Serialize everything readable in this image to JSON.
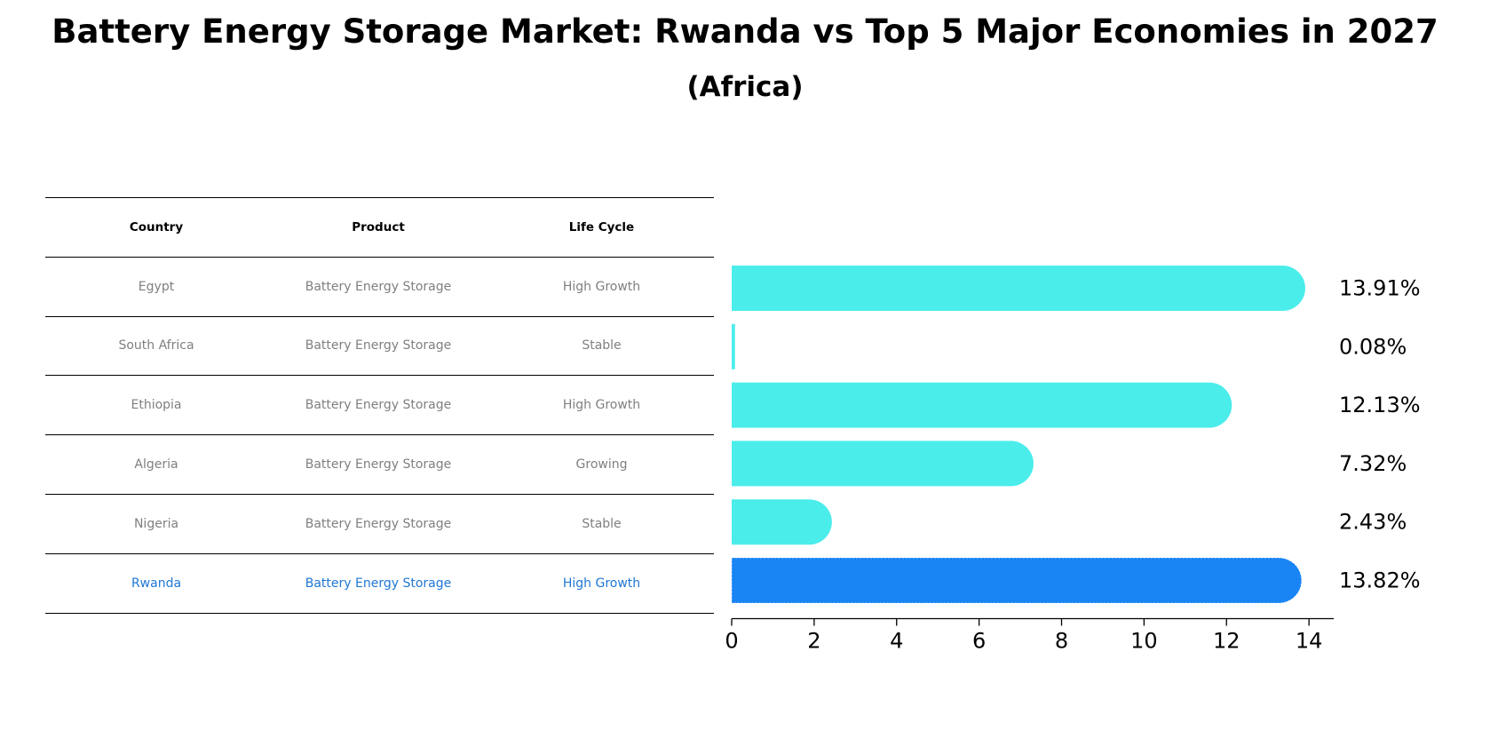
{
  "title": "Battery Energy Storage Market: Rwanda vs Top 5 Major Economies in 2027",
  "subtitle": "(Africa)",
  "table": {
    "headers": [
      "Country",
      "Product",
      "Life Cycle"
    ],
    "rows": [
      {
        "country": "Egypt",
        "product": "Battery Energy Storage",
        "life_cycle": "High Growth"
      },
      {
        "country": "South Africa",
        "product": "Battery Energy Storage",
        "life_cycle": "Stable"
      },
      {
        "country": "Ethiopia",
        "product": "Battery Energy Storage",
        "life_cycle": "High Growth"
      },
      {
        "country": "Algeria",
        "product": "Battery Energy Storage",
        "life_cycle": "Growing"
      },
      {
        "country": "Nigeria",
        "product": "Battery Energy Storage",
        "life_cycle": "Stable"
      },
      {
        "country": "Rwanda",
        "product": "Battery Energy Storage",
        "life_cycle": "High Growth"
      }
    ]
  },
  "colors": {
    "bar": "#4BEDEB",
    "highlight": "#1985F5",
    "highlight_text": "#1F77D4",
    "muted_text": "#7F7F7F"
  },
  "chart_data": {
    "type": "bar",
    "orientation": "horizontal",
    "categories": [
      "Egypt",
      "South Africa",
      "Ethiopia",
      "Algeria",
      "Nigeria",
      "Rwanda"
    ],
    "values": [
      13.91,
      0.08,
      12.13,
      7.32,
      2.43,
      13.82
    ],
    "value_labels": [
      "13.91%",
      "0.08%",
      "12.13%",
      "7.32%",
      "2.43%",
      "13.82%"
    ],
    "highlight_category": "Rwanda",
    "xlim": [
      0,
      14.6
    ],
    "xticks": [
      0,
      2,
      4,
      6,
      8,
      10,
      12,
      14
    ],
    "xlabel": "",
    "ylabel": "",
    "grid": false
  }
}
